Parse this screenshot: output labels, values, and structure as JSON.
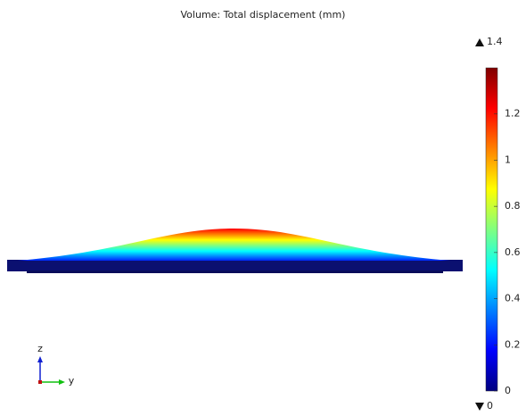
{
  "chart_data": {
    "type": "surface",
    "title": "Volume: Total displacement (mm)",
    "max": 1.4,
    "min": 0,
    "colorbar_lim": [
      0,
      1.4
    ],
    "colorbar_ticks": [
      0,
      0.2,
      0.4,
      0.6,
      0.8,
      1,
      1.2
    ],
    "colormap": [
      "#00007f",
      "#0000ff",
      "#0080ff",
      "#00ffff",
      "#80ff80",
      "#ffff00",
      "#ff8000",
      "#ff0000",
      "#7f0000"
    ],
    "axes": [
      "z",
      "y"
    ]
  }
}
